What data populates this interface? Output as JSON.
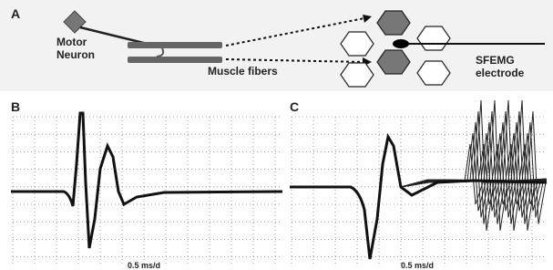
{
  "panel_a": {
    "label": "A",
    "neuron_label": [
      "Motor",
      "Neuron"
    ],
    "fibers_label": "Muscle fibers",
    "electrode_label": [
      "SFEMG",
      "electrode"
    ]
  },
  "panel_b": {
    "label": "B",
    "scale_label": "0.5 ms/d"
  },
  "panel_c": {
    "label": "C",
    "scale_label": "0.5 ms/d"
  }
}
